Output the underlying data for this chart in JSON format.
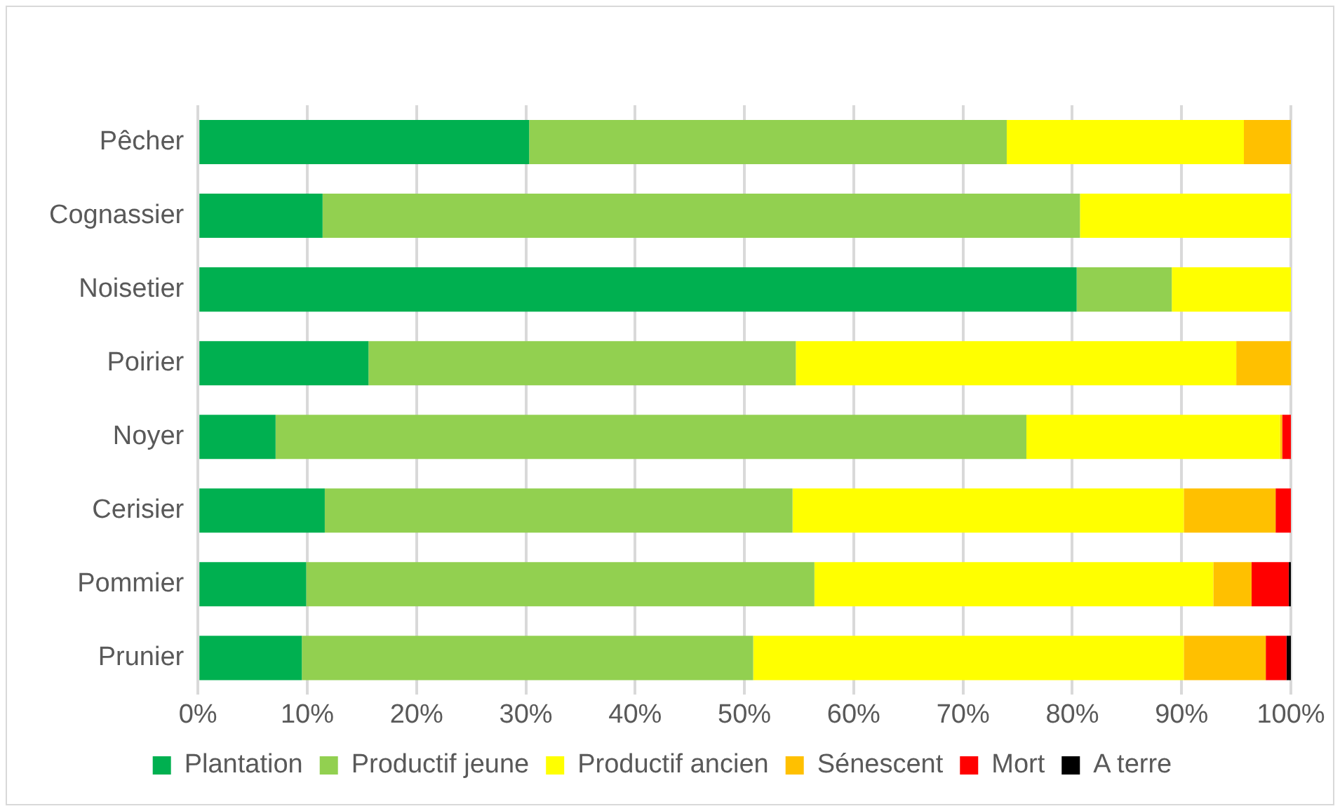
{
  "chart_data": {
    "type": "bar",
    "orientation": "horizontal",
    "stacked": true,
    "categories": [
      "Pêcher",
      "Cognassier",
      "Noisetier",
      "Poirier",
      "Noyer",
      "Cerisier",
      "Pommier",
      "Prunier"
    ],
    "series": [
      {
        "name": "Plantation",
        "color": "#00b050",
        "values": [
          30.3,
          11.4,
          80.4,
          15.6,
          7.1,
          11.6,
          9.9,
          9.5
        ]
      },
      {
        "name": "Productif jeune",
        "color": "#92d050",
        "values": [
          43.7,
          69.3,
          8.7,
          39.1,
          68.7,
          42.8,
          46.5,
          41.3
        ]
      },
      {
        "name": "Productif ancien",
        "color": "#ffff00",
        "values": [
          21.7,
          19.3,
          10.9,
          40.3,
          23.2,
          35.8,
          36.5,
          39.4
        ]
      },
      {
        "name": "Sénescent",
        "color": "#ffc000",
        "values": [
          4.3,
          null,
          null,
          5.0,
          0.2,
          8.4,
          3.5,
          7.5
        ]
      },
      {
        "name": "Mort",
        "color": "#ff0000",
        "values": [
          null,
          null,
          null,
          null,
          0.8,
          1.4,
          3.4,
          1.9
        ]
      },
      {
        "name": "A terre",
        "color": "#000000",
        "values": [
          null,
          null,
          null,
          null,
          null,
          null,
          0.2,
          0.4
        ]
      }
    ],
    "xlim": [
      0,
      100
    ],
    "xticks": [
      {
        "value": 0,
        "label": "0%"
      },
      {
        "value": 10,
        "label": "10%"
      },
      {
        "value": 20,
        "label": "20%"
      },
      {
        "value": 30,
        "label": "30%"
      },
      {
        "value": 40,
        "label": "40%"
      },
      {
        "value": 50,
        "label": "50%"
      },
      {
        "value": 60,
        "label": "60%"
      },
      {
        "value": 70,
        "label": "70%"
      },
      {
        "value": 80,
        "label": "80%"
      },
      {
        "value": 90,
        "label": "90%"
      },
      {
        "value": 100,
        "label": "100%"
      }
    ],
    "grid": "x",
    "legend": "bottom"
  }
}
